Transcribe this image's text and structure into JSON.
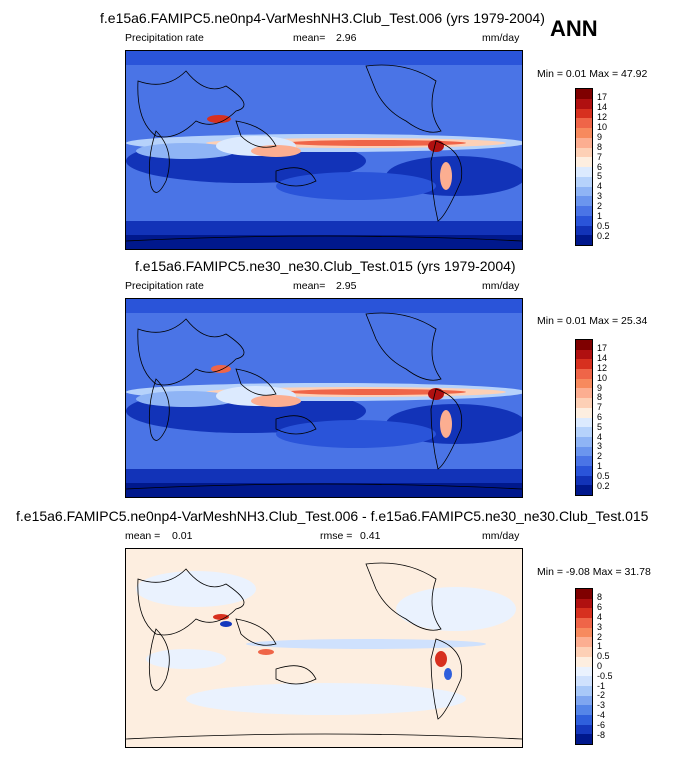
{
  "season": "ANN",
  "panels": [
    {
      "title": "f.e15a6.FAMIPC5.ne0np4-VarMeshNH3.Club_Test.006 (yrs 1979-2004)",
      "left_label": "Precipitation rate",
      "stat_label": "mean=",
      "stat_value": "2.96",
      "stat2_label": "",
      "stat2_value": "",
      "units": "mm/day",
      "minmax": "Min =   0.01 Max =  47.92",
      "colorbar": {
        "labels": [
          "17",
          "14",
          "12",
          "10",
          "9",
          "8",
          "7",
          "6",
          "5",
          "4",
          "3",
          "2",
          "1",
          "0.5",
          "0.2"
        ],
        "colors": [
          "#7f0000",
          "#b01010",
          "#d7301f",
          "#ef6548",
          "#f78a5e",
          "#fcae91",
          "#fdd0b6",
          "#fdeee0",
          "#dceafe",
          "#b6d2fb",
          "#8fb4f5",
          "#6b95ee",
          "#4a74e6",
          "#2a54d9",
          "#1233b8",
          "#00188c"
        ]
      }
    },
    {
      "title": "f.e15a6.FAMIPC5.ne30_ne30.Club_Test.015 (yrs 1979-2004)",
      "left_label": "Precipitation rate",
      "stat_label": "mean=",
      "stat_value": "2.95",
      "stat2_label": "",
      "stat2_value": "",
      "units": "mm/day",
      "minmax": "Min =   0.01 Max =  25.34",
      "colorbar": {
        "labels": [
          "17",
          "14",
          "12",
          "10",
          "9",
          "8",
          "7",
          "6",
          "5",
          "4",
          "3",
          "2",
          "1",
          "0.5",
          "0.2"
        ],
        "colors": [
          "#7f0000",
          "#b01010",
          "#d7301f",
          "#ef6548",
          "#f78a5e",
          "#fcae91",
          "#fdd0b6",
          "#fdeee0",
          "#dceafe",
          "#b6d2fb",
          "#8fb4f5",
          "#6b95ee",
          "#4a74e6",
          "#2a54d9",
          "#1233b8",
          "#00188c"
        ]
      }
    },
    {
      "title": "f.e15a6.FAMIPC5.ne0np4-VarMeshNH3.Club_Test.006 - f.e15a6.FAMIPC5.ne30_ne30.Club_Test.015",
      "left_label": "mean =",
      "stat_label": "",
      "stat_value": "0.01",
      "stat2_label": "rmse =",
      "stat2_value": "0.41",
      "units": "mm/day",
      "minmax": "Min =  -9.08 Max =  31.78",
      "colorbar": {
        "labels": [
          "8",
          "6",
          "4",
          "3",
          "2",
          "1",
          "0.5",
          "0",
          "-0.5",
          "-1",
          "-2",
          "-3",
          "-4",
          "-6",
          "-8"
        ],
        "colors": [
          "#7f0000",
          "#b01010",
          "#d7301f",
          "#ef6548",
          "#f78a5e",
          "#fcae91",
          "#fdd0b6",
          "#fdeee0",
          "#eaf2fe",
          "#cfe1fd",
          "#a8c8f8",
          "#7fa6f0",
          "#5585e8",
          "#2f5fdc",
          "#1538bd",
          "#00188c"
        ]
      }
    }
  ],
  "chart_data": [
    {
      "type": "heatmap",
      "title": "f.e15a6.FAMIPC5.ne0np4-VarMeshNH3.Club_Test.006 (yrs 1979-2004)",
      "variable": "Precipitation rate",
      "units": "mm/day",
      "mean": 2.96,
      "min": 0.01,
      "max": 47.92,
      "levels": [
        0.2,
        0.5,
        1,
        2,
        3,
        4,
        5,
        6,
        7,
        8,
        9,
        10,
        12,
        14,
        17
      ]
    },
    {
      "type": "heatmap",
      "title": "f.e15a6.FAMIPC5.ne30_ne30.Club_Test.015 (yrs 1979-2004)",
      "variable": "Precipitation rate",
      "units": "mm/day",
      "mean": 2.95,
      "min": 0.01,
      "max": 25.34,
      "levels": [
        0.2,
        0.5,
        1,
        2,
        3,
        4,
        5,
        6,
        7,
        8,
        9,
        10,
        12,
        14,
        17
      ]
    },
    {
      "type": "heatmap",
      "title": "f.e15a6.FAMIPC5.ne0np4-VarMeshNH3.Club_Test.006 - f.e15a6.FAMIPC5.ne30_ne30.Club_Test.015",
      "units": "mm/day",
      "mean": 0.01,
      "rmse": 0.41,
      "min": -9.08,
      "max": 31.78,
      "levels": [
        -8,
        -6,
        -4,
        -3,
        -2,
        -1,
        -0.5,
        0,
        0.5,
        1,
        2,
        3,
        4,
        6,
        8
      ]
    }
  ]
}
